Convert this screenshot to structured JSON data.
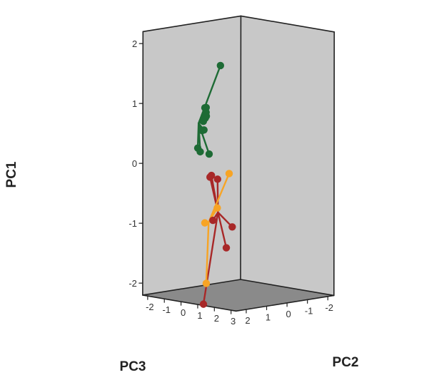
{
  "chart_data": {
    "type": "scatter",
    "subtype": "3d-scatter-with-centroid-spikes",
    "axes": {
      "pc1": {
        "label": "PC1",
        "ticks": [
          "-2",
          "-1",
          "0",
          "1",
          "2"
        ],
        "range": [
          -2.2,
          2.2
        ]
      },
      "pc2": {
        "label": "PC2",
        "ticks": [
          "-2",
          "-1",
          "0",
          "1",
          "2",
          "3"
        ],
        "range": [
          -2.3,
          3.3
        ]
      },
      "pc3": {
        "label": "PC3",
        "ticks": [
          "-2",
          "-1",
          "0",
          "1",
          "2"
        ],
        "range": [
          -2.3,
          2.5
        ]
      }
    },
    "grid": false,
    "walls": {
      "color": "#c8c8c8",
      "floor_color": "#8a8a8a",
      "edge_color": "#222222"
    },
    "groups": [
      {
        "color": "#1e6b35",
        "centroid": {
          "pc1": 0.72,
          "pc2": -0.12,
          "pc3": 1.55
        },
        "points": [
          {
            "pc1": 1.72,
            "pc2": 0.88,
            "pc3": 1.3
          },
          {
            "pc1": 0.72,
            "pc2": -0.88,
            "pc3": 0.6
          },
          {
            "pc1": 0.78,
            "pc2": -0.55,
            "pc3": 0.82
          },
          {
            "pc1": 0.88,
            "pc2": -0.16,
            "pc3": 1.15
          },
          {
            "pc1": 0.98,
            "pc2": 0.05,
            "pc3": 1.32
          },
          {
            "pc1": 1.02,
            "pc2": 0.5,
            "pc3": 1.75
          },
          {
            "pc1": 0.89,
            "pc2": 0.56,
            "pc3": 1.82
          },
          {
            "pc1": 0.8,
            "pc2": 0.52,
            "pc3": 1.84
          },
          {
            "pc1": 0.66,
            "pc2": 0.58,
            "pc3": 1.86
          },
          {
            "pc1": 0.6,
            "pc2": -0.03,
            "pc3": 1.45
          },
          {
            "pc1": 0.35,
            "pc2": 0.32,
            "pc3": 1.95
          },
          {
            "pc1": 0.22,
            "pc2": -0.35,
            "pc3": 1.28
          },
          {
            "pc1": 0.14,
            "pc2": -0.55,
            "pc3": 0.68
          }
        ]
      },
      {
        "color": "#a82828",
        "centroid": {
          "pc1": -0.75,
          "pc2": 0.62,
          "pc3": 1.2
        },
        "points": [
          {
            "pc1": -0.18,
            "pc2": -0.08,
            "pc3": 0.95
          },
          {
            "pc1": -0.19,
            "pc2": 0.08,
            "pc3": 1.15
          },
          {
            "pc1": -0.29,
            "pc2": -0.41,
            "pc3": 0.38
          },
          {
            "pc1": -0.83,
            "pc2": 1.05,
            "pc3": 1.8
          },
          {
            "pc1": -0.93,
            "pc2": 1.72,
            "pc3": 1.4
          },
          {
            "pc1": -1.38,
            "pc2": 0.45,
            "pc3": 0.65
          },
          {
            "pc1": -2.2,
            "pc2": 1.1,
            "pc3": 2.3
          }
        ]
      },
      {
        "color": "#f7a425",
        "centroid": {
          "pc1": -1.05,
          "pc2": -1.1,
          "pc3": 0.25
        },
        "points": [
          {
            "pc1": -0.2,
            "pc2": -0.12,
            "pc3": 0.05
          },
          {
            "pc1": -0.98,
            "pc2": -0.35,
            "pc3": 1.05
          },
          {
            "pc1": -0.92,
            "pc2": -2.05,
            "pc3": -0.95
          },
          {
            "pc1": -1.98,
            "pc2": -0.2,
            "pc3": 1.1
          }
        ]
      }
    ]
  }
}
